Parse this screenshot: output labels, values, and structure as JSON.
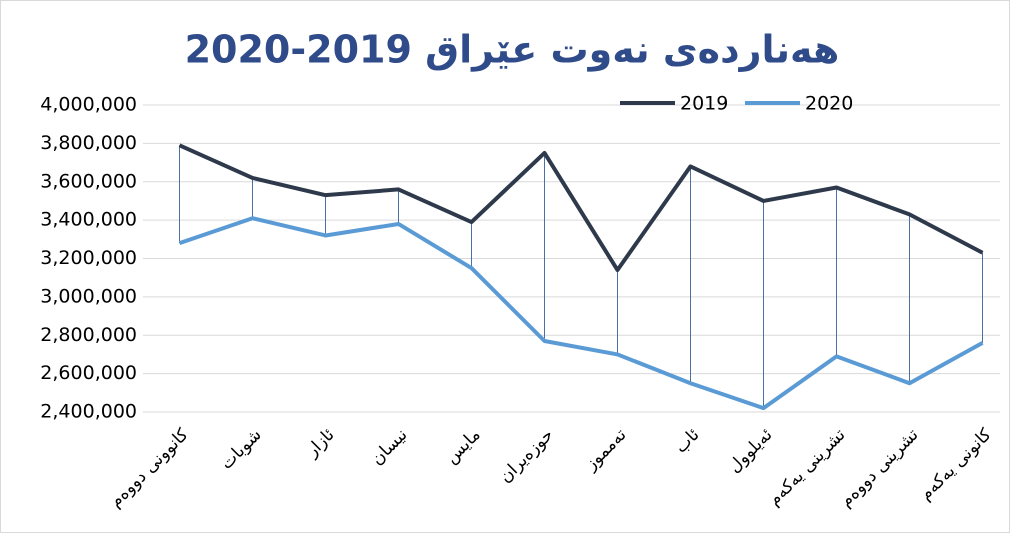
{
  "chart_data": {
    "type": "line",
    "title": "هەناردەی نەوت عێراق 2019-2020",
    "categories": [
      "کانوونی دووەم",
      "شوبات",
      "ئازار",
      "نیسان",
      "مایس",
      "حوزەیران",
      "تەمموز",
      "ئاب",
      "ئەیلوول",
      "تشرینی یەکەم",
      "تشرینی دووەم",
      "کانونی یەکەم"
    ],
    "series": [
      {
        "name": "2019",
        "color": "#2e3a4b",
        "values": [
          3790000,
          3620000,
          3530000,
          3560000,
          3390000,
          3750000,
          3140000,
          3680000,
          3500000,
          3570000,
          3430000,
          3230000
        ]
      },
      {
        "name": "2020",
        "color": "#5b9bd5",
        "values": [
          3280000,
          3410000,
          3320000,
          3380000,
          3150000,
          2770000,
          2700000,
          2550000,
          2420000,
          2690000,
          2550000,
          2760000
        ]
      }
    ],
    "ylim": [
      2400000,
      4000000
    ],
    "yticks": [
      {
        "value": 2400000,
        "label": "2,400,000"
      },
      {
        "value": 2600000,
        "label": "2,600,000"
      },
      {
        "value": 2800000,
        "label": "2,800,000"
      },
      {
        "value": 3000000,
        "label": "3,000,000"
      },
      {
        "value": 3200000,
        "label": "3,200,000"
      },
      {
        "value": 3400000,
        "label": "3,400,000"
      },
      {
        "value": 3600000,
        "label": "3,600,000"
      },
      {
        "value": 3800000,
        "label": "3,800,000"
      },
      {
        "value": 4000000,
        "label": "4,000,000"
      }
    ],
    "grid": true,
    "drop_lines": true,
    "legend": "top-right"
  }
}
